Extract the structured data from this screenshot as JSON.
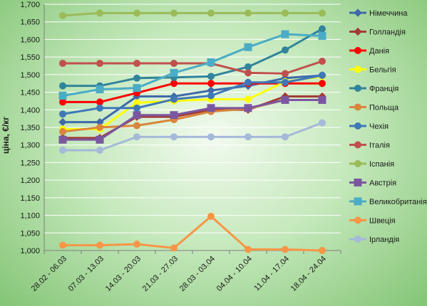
{
  "chart_data": {
    "type": "line",
    "title": "",
    "xlabel": "",
    "ylabel": "ціна, €/кг",
    "ylim": [
      1.0,
      1.7
    ],
    "yticks": [
      1.0,
      1.05,
      1.1,
      1.15,
      1.2,
      1.25,
      1.3,
      1.35,
      1.4,
      1.45,
      1.5,
      1.55,
      1.6,
      1.65,
      1.7
    ],
    "ytick_labels": [
      "1,000",
      "1,050",
      "1,100",
      "1,150",
      "1,200",
      "1,250",
      "1,300",
      "1,350",
      "1,400",
      "1,450",
      "1,500",
      "1,550",
      "1,600",
      "1,650",
      "1,700"
    ],
    "categories": [
      "28.02 - 06.03",
      "07.03 - 13.03",
      "14.03 - 20.03",
      "21.03 - 27.03",
      "28.03 - 03.04",
      "04.04 - 10.04",
      "11.04 - 17.04",
      "18.04 - 24.04"
    ],
    "grid": true,
    "legend_position": "right",
    "series": [
      {
        "name": "Німеччина",
        "color": "#3f6aa8",
        "marker": "diamond",
        "values": [
          1.365,
          1.365,
          1.438,
          1.438,
          1.455,
          1.468,
          1.49,
          1.498
        ]
      },
      {
        "name": "Голландія",
        "color": "#a33b36",
        "marker": "diamond",
        "values": [
          1.32,
          1.32,
          1.38,
          1.38,
          1.4,
          1.4,
          1.438,
          1.438
        ]
      },
      {
        "name": "Данія",
        "color": "#ff0000",
        "marker": "circle",
        "values": [
          1.422,
          1.422,
          1.448,
          1.475,
          1.475,
          1.475,
          1.475,
          1.475
        ]
      },
      {
        "name": "Бельгія",
        "color": "#ffff00",
        "marker": "circle",
        "values": [
          1.345,
          1.345,
          1.42,
          1.425,
          1.43,
          1.43,
          1.48,
          1.495
        ]
      },
      {
        "name": "Франція",
        "color": "#31849b",
        "marker": "circle",
        "values": [
          1.468,
          1.468,
          1.49,
          1.492,
          1.495,
          1.522,
          1.57,
          1.63
        ]
      },
      {
        "name": "Польща",
        "color": "#d9853b",
        "marker": "circle",
        "values": [
          1.338,
          1.35,
          1.355,
          1.372,
          1.395,
          1.403,
          1.428,
          1.428
        ]
      },
      {
        "name": "Чехія",
        "color": "#3f78b8",
        "marker": "circle",
        "values": [
          1.388,
          1.405,
          1.405,
          1.43,
          1.44,
          1.478,
          1.478,
          1.498
        ]
      },
      {
        "name": "Італія",
        "color": "#c0504d",
        "marker": "circle",
        "values": [
          1.532,
          1.532,
          1.532,
          1.532,
          1.532,
          1.505,
          1.503,
          1.538
        ]
      },
      {
        "name": "Іспанія",
        "color": "#9bbb59",
        "marker": "circle",
        "values": [
          1.668,
          1.675,
          1.675,
          1.675,
          1.675,
          1.675,
          1.675,
          1.675
        ]
      },
      {
        "name": "Австрія",
        "color": "#7b57a0",
        "marker": "square",
        "values": [
          1.315,
          1.315,
          1.385,
          1.385,
          1.405,
          1.405,
          1.428,
          1.428
        ]
      },
      {
        "name": "Великобританія",
        "color": "#4bacc6",
        "marker": "square",
        "values": [
          1.44,
          1.458,
          1.462,
          1.505,
          1.535,
          1.578,
          1.615,
          1.61
        ]
      },
      {
        "name": "Швеція",
        "color": "#f79646",
        "marker": "circle",
        "values": [
          1.015,
          1.015,
          1.018,
          1.007,
          1.097,
          1.003,
          1.003,
          1.0
        ]
      },
      {
        "name": "Ірландія",
        "color": "#a5b9d9",
        "marker": "circle",
        "values": [
          1.285,
          1.285,
          1.323,
          1.323,
          1.323,
          1.323,
          1.323,
          1.363
        ]
      }
    ]
  }
}
